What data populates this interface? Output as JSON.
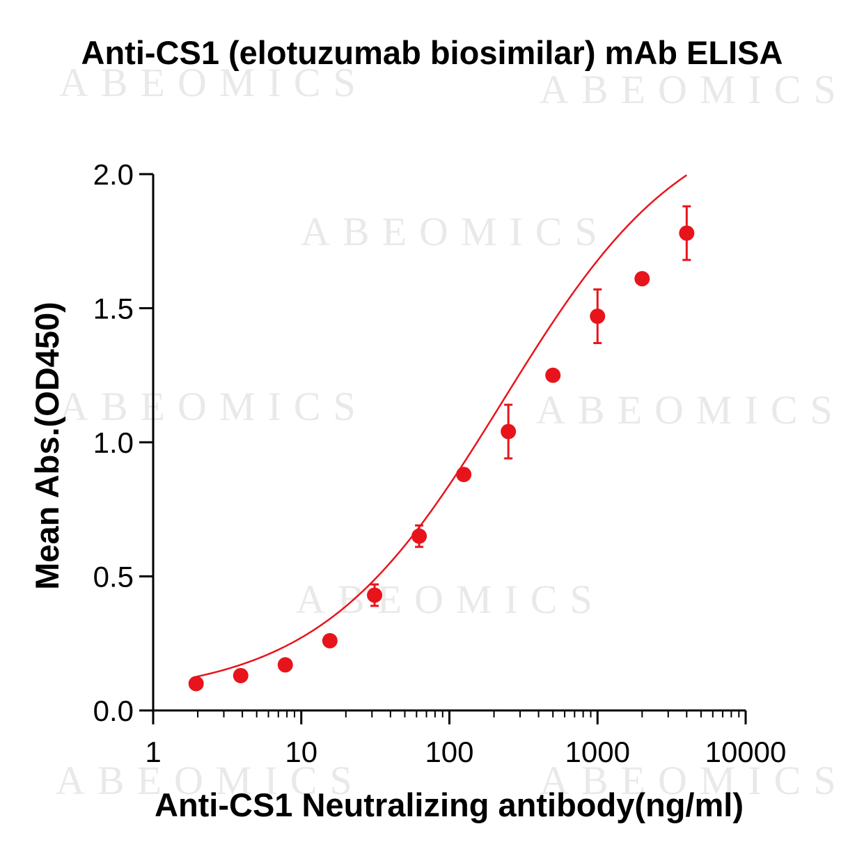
{
  "chart_data": {
    "type": "scatter",
    "title": "Anti-CS1 (elotuzumab biosimilar) mAb ELISA",
    "xlabel": "Anti-CS1 Neutralizing antibody(ng/ml)",
    "ylabel": "Mean Abs.(OD450)",
    "xscale": "log",
    "xlim": [
      1,
      10000
    ],
    "ylim": [
      0,
      2.0
    ],
    "x_ticks": [
      1,
      10,
      100,
      1000,
      10000
    ],
    "x_tick_labels": [
      "1",
      "10",
      "100",
      "1000",
      "10000"
    ],
    "y_ticks": [
      0,
      0.5,
      1.0,
      1.5,
      2.0
    ],
    "y_tick_labels": [
      "0.0",
      "0.5",
      "1.0",
      "1.5",
      "2.0"
    ],
    "grid": false,
    "series": [
      {
        "name": "Anti-CS1 Neutralizing antibody",
        "color": "#e8141c",
        "x": [
          1.95,
          3.9,
          7.8,
          15.6,
          31.25,
          62.5,
          125,
          250,
          500,
          1000,
          2000,
          4000
        ],
        "y": [
          0.1,
          0.13,
          0.17,
          0.26,
          0.43,
          0.65,
          0.88,
          1.04,
          1.25,
          1.47,
          1.61,
          1.78
        ],
        "error": [
          0.01,
          0.01,
          0.01,
          0.01,
          0.04,
          0.04,
          0.01,
          0.1,
          0.01,
          0.1,
          0.01,
          0.1
        ],
        "fit": "four-parameter logistic curve"
      }
    ]
  },
  "watermark": "ABEOMICS"
}
